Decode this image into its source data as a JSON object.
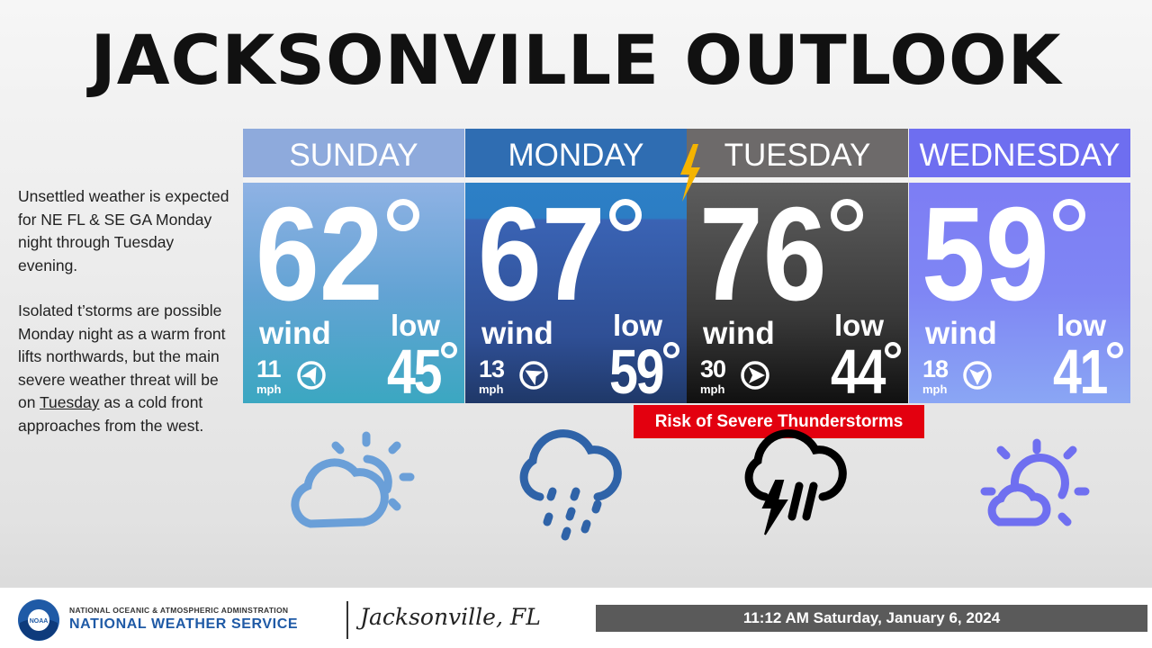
{
  "title": "JACKSONVILLE OUTLOOK",
  "summary": {
    "paragraph_1": "Unsettled weather is expected for NE FL & SE GA Monday night through Tuesday evening.",
    "paragraph_2": [
      "Isolated t’storms are possible Monday night as a warm front lifts northwards, but the main severe weather threat will be on",
      "Tuesday",
      "as a cold front approaches from the west."
    ]
  },
  "days": [
    {
      "name": "SUNDAY",
      "high": 62,
      "wind_label": "wind",
      "wind_speed": 11,
      "wind_unit": "mph",
      "low_label": "low",
      "low": 45
    },
    {
      "name": "MONDAY",
      "high": 67,
      "wind_label": "wind",
      "wind_speed": 13,
      "wind_unit": "mph",
      "low_label": "low",
      "low": 59
    },
    {
      "name": "TUESDAY",
      "high": 76,
      "wind_label": "wind",
      "wind_speed": 30,
      "wind_unit": "mph",
      "low_label": "low",
      "low": 44
    },
    {
      "name": "WEDNESDAY",
      "high": 59,
      "wind_label": "wind",
      "wind_speed": 18,
      "wind_unit": "mph",
      "low_label": "low",
      "low": 41
    }
  ],
  "alert": "Risk of Severe Thunderstorms",
  "footer": {
    "logo_text": "NOAA",
    "org_line1": "NATIONAL OCEANIC & ATMOSPHERIC ADMINSTRATION",
    "org_line2": "NATIONAL WEATHER SERVICE",
    "office": "Jacksonville, FL",
    "timestamp": "11:12 AM Saturday, January 6, 2024"
  }
}
